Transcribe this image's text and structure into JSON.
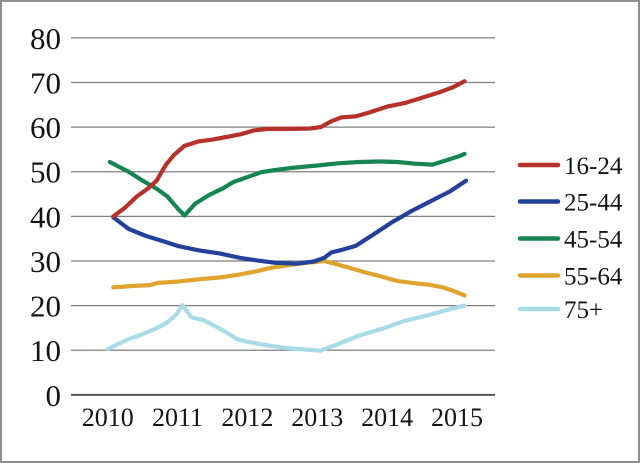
{
  "window": {
    "background": "#ffffff",
    "border_color": "#8f8f8f",
    "gridline_color": "#7f7f7f",
    "axis_line_color": "#555555",
    "text_color": "#141414"
  },
  "chart_data": {
    "type": "line",
    "title": "",
    "xlabel": "",
    "ylabel": "",
    "grid": true,
    "legend_position": "right",
    "ylim": [
      0,
      80
    ],
    "y_ticks": [
      0,
      10,
      20,
      30,
      40,
      50,
      60,
      70,
      80
    ],
    "y_tick_labels": [
      "0",
      "10",
      "20",
      "30",
      "40",
      "50",
      "60",
      "70",
      "80"
    ],
    "x_ticks": [
      2010,
      2011,
      2012,
      2013,
      2014,
      2015
    ],
    "x_tick_labels": [
      "2010",
      "2011",
      "2012",
      "2013",
      "2014",
      "2015"
    ],
    "series": [
      {
        "name": "16-24",
        "color": "#b5312a",
        "x": [
          2010.08,
          2010.25,
          2010.42,
          2010.58,
          2010.7,
          2010.83,
          2010.95,
          2011.1,
          2011.3,
          2011.5,
          2011.7,
          2011.9,
          2012.1,
          2012.3,
          2012.6,
          2012.9,
          2013.05,
          2013.2,
          2013.35,
          2013.55,
          2013.75,
          2014.0,
          2014.25,
          2014.5,
          2014.75,
          2014.95,
          2015.11
        ],
        "y": [
          40,
          42,
          44.5,
          46.3,
          48,
          51.5,
          53.8,
          55.8,
          56.8,
          57.2,
          57.8,
          58.4,
          59.3,
          59.6,
          59.6,
          59.7,
          60,
          61.3,
          62.2,
          62.4,
          63.3,
          64.6,
          65.4,
          66.6,
          67.8,
          69,
          70.3
        ]
      },
      {
        "name": "25-44",
        "color": "#23419a",
        "x": [
          2010.08,
          2010.3,
          2010.55,
          2010.8,
          2011.0,
          2011.3,
          2011.6,
          2011.9,
          2012.15,
          2012.4,
          2012.7,
          2012.95,
          2013.1,
          2013.2,
          2013.35,
          2013.55,
          2013.8,
          2014.05,
          2014.35,
          2014.65,
          2014.9,
          2015.13
        ],
        "y": [
          39.8,
          37.2,
          35.6,
          34.4,
          33.4,
          32.4,
          31.7,
          30.7,
          30.1,
          29.6,
          29.4,
          29.9,
          30.7,
          31.9,
          32.5,
          33.4,
          35.9,
          38.5,
          41.2,
          43.6,
          45.6,
          48
        ]
      },
      {
        "name": "45-54",
        "color": "#178551",
        "x": [
          2010.03,
          2010.3,
          2010.5,
          2010.7,
          2010.85,
          2011.0,
          2011.1,
          2011.25,
          2011.45,
          2011.65,
          2011.8,
          2012.0,
          2012.2,
          2012.4,
          2012.65,
          2013.0,
          2013.3,
          2013.6,
          2013.9,
          2014.15,
          2014.4,
          2014.65,
          2014.85,
          2015.05,
          2015.11
        ],
        "y": [
          52.2,
          50,
          48,
          46.2,
          44.5,
          41.8,
          40.2,
          42.8,
          44.8,
          46.3,
          47.7,
          48.8,
          49.9,
          50.4,
          50.9,
          51.4,
          51.9,
          52.2,
          52.3,
          52.2,
          51.8,
          51.6,
          52.6,
          53.6,
          54
        ]
      },
      {
        "name": "55-64",
        "color": "#dfa42e",
        "x": [
          2010.08,
          2010.35,
          2010.6,
          2010.72,
          2011.0,
          2011.3,
          2011.6,
          2011.85,
          2012.1,
          2012.35,
          2012.6,
          2012.85,
          2013.1,
          2013.3,
          2013.5,
          2013.7,
          2013.9,
          2014.15,
          2014.4,
          2014.6,
          2014.8,
          2014.95,
          2015.11
        ],
        "y": [
          24.1,
          24.4,
          24.6,
          25.1,
          25.4,
          25.9,
          26.3,
          26.9,
          27.6,
          28.5,
          29.1,
          29.6,
          30,
          29.2,
          28.3,
          27.4,
          26.6,
          25.5,
          25,
          24.7,
          24.1,
          23.3,
          22.3
        ]
      },
      {
        "name": "75+",
        "color": "#a9dbe6",
        "x": [
          2010.0,
          2010.1,
          2010.28,
          2010.48,
          2010.68,
          2010.85,
          2010.98,
          2011.07,
          2011.2,
          2011.38,
          2011.55,
          2011.7,
          2011.85,
          2012.0,
          2012.25,
          2012.5,
          2012.8,
          2013.05,
          2013.3,
          2013.6,
          2013.95,
          2014.25,
          2014.6,
          2014.9,
          2015.11
        ],
        "y": [
          10.3,
          11,
          12.4,
          13.5,
          14.8,
          16.2,
          18,
          20.1,
          17.4,
          16.7,
          15.3,
          14,
          12.5,
          11.9,
          11.2,
          10.6,
          10.2,
          9.9,
          11.4,
          13.3,
          14.9,
          16.6,
          17.9,
          19.2,
          20
        ]
      }
    ]
  }
}
